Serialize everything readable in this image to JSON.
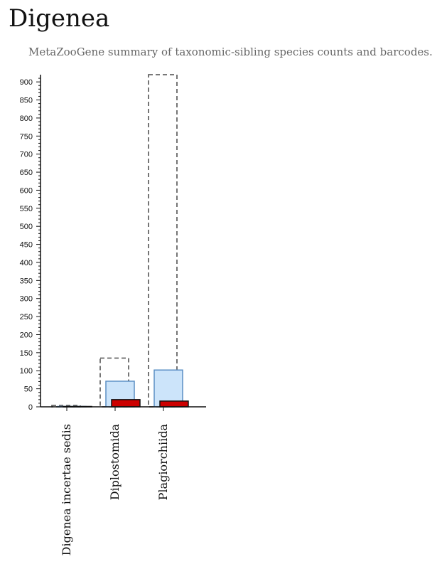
{
  "header": {
    "title": "Digenea",
    "subtitle": "MetaZooGene summary of taxonomic-sibling species counts and barcodes."
  },
  "chart_data": {
    "type": "bar",
    "title": "",
    "xlabel": "",
    "ylabel": "",
    "ylim": [
      0,
      920
    ],
    "yticks": [
      0,
      50,
      100,
      150,
      200,
      250,
      300,
      350,
      400,
      450,
      500,
      550,
      600,
      650,
      700,
      750,
      800,
      850,
      900
    ],
    "grid": false,
    "categories": [
      "Digenea incertae sedis",
      "Diplostomida",
      "Plagiorchiida"
    ],
    "series": [
      {
        "values": [
          4,
          135,
          920
        ],
        "style": "dashed-outline",
        "color": "#666666"
      },
      {
        "values": [
          1,
          71,
          102
        ],
        "style": "filled",
        "color": "#cce4fa",
        "stroke": "#5b8fc4"
      },
      {
        "values": [
          1,
          20,
          16
        ],
        "style": "filled",
        "color": "#cc0000",
        "stroke": "#111111"
      }
    ]
  }
}
